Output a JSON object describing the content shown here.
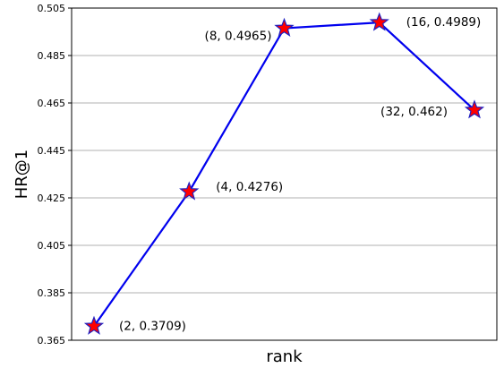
{
  "chart_data": {
    "type": "line",
    "title": "",
    "xlabel": "rank",
    "ylabel": "HR@1",
    "x_scale": "log2",
    "x_ticks_shown": false,
    "grid": "horizontal",
    "ylim": [
      0.365,
      0.505
    ],
    "y_ticks": [
      "0.365",
      "0.385",
      "0.405",
      "0.425",
      "0.445",
      "0.465",
      "0.485",
      "0.505"
    ],
    "line_color": "#0000ee",
    "marker": "star",
    "marker_fill": "#ff0000",
    "marker_edge": "#2020c0",
    "series": [
      {
        "x": [
          2,
          4,
          8,
          16,
          32
        ],
        "y": [
          0.3709,
          0.4276,
          0.4965,
          0.4989,
          0.462
        ],
        "labels": [
          "(2, 0.3709)",
          "(4, 0.4276)",
          "(8, 0.4965)",
          "(16, 0.4989)",
          "(32, 0.462)"
        ]
      }
    ]
  }
}
